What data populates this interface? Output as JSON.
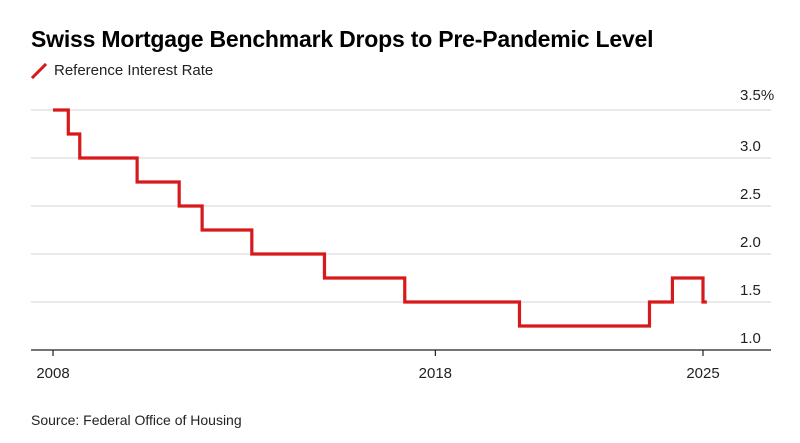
{
  "title": "Swiss Mortgage Benchmark Drops to Pre-Pandemic Level",
  "source": "Source: Federal Office of Housing",
  "colors": {
    "series": "#d6191b",
    "grid": "#d4d4d4",
    "axis": "#222222"
  },
  "chart_data": {
    "type": "line",
    "step": true,
    "title": "Swiss Mortgage Benchmark Drops to Pre-Pandemic Level",
    "xlabel": "",
    "ylabel": "",
    "xlim": [
      2008,
      2026.5
    ],
    "ylim": [
      1.0,
      3.5
    ],
    "y_ticks": [
      {
        "value": 3.5,
        "label": "3.5%"
      },
      {
        "value": 3.0,
        "label": "3.0"
      },
      {
        "value": 2.5,
        "label": "2.5"
      },
      {
        "value": 2.0,
        "label": "2.0"
      },
      {
        "value": 1.5,
        "label": "1.5"
      },
      {
        "value": 1.0,
        "label": "1.0"
      }
    ],
    "x_ticks": [
      {
        "value": 2008,
        "label": "2008"
      },
      {
        "value": 2018,
        "label": "2018"
      },
      {
        "value": 2025,
        "label": "2025"
      }
    ],
    "grid": true,
    "legend": "top-left",
    "series": [
      {
        "name": "Reference Interest Rate",
        "x": [
          2008.0,
          2008.4,
          2008.7,
          2010.2,
          2011.3,
          2011.9,
          2013.2,
          2015.1,
          2017.2,
          2020.2,
          2023.6,
          2024.2,
          2025.0
        ],
        "y": [
          3.5,
          3.25,
          3.0,
          2.75,
          2.5,
          2.25,
          2.0,
          1.75,
          1.5,
          1.25,
          1.5,
          1.75,
          1.5
        ],
        "x_end": 2025.1
      }
    ]
  }
}
